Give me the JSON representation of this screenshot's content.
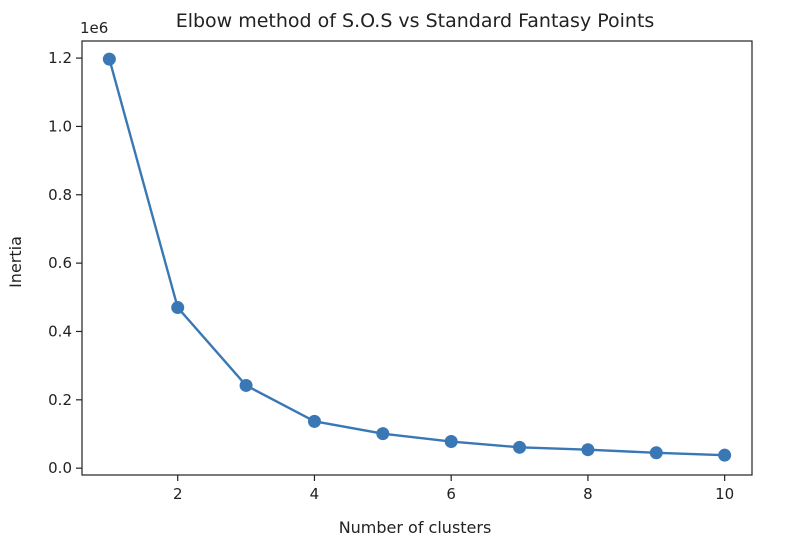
{
  "chart_data": {
    "type": "line",
    "title": "Elbow method of S.O.S vs Standard Fantasy Points",
    "xlabel": "Number of clusters",
    "ylabel": "Inertia",
    "y_offset_label": "1e6",
    "xlim": [
      0.6,
      10.4
    ],
    "ylim": [
      -0.02,
      1.25
    ],
    "x_ticks": [
      2,
      4,
      6,
      8,
      10
    ],
    "x_tick_labels": [
      "2",
      "4",
      "6",
      "8",
      "10"
    ],
    "y_ticks": [
      0.0,
      0.2,
      0.4,
      0.6,
      0.8,
      1.0,
      1.2
    ],
    "y_tick_labels": [
      "0.0",
      "0.2",
      "0.4",
      "0.6",
      "0.8",
      "1.0",
      "1.2"
    ],
    "grid": false,
    "legend": "none",
    "series": [
      {
        "color": "#3a78b5",
        "marker": "circle",
        "x": [
          1,
          2,
          3,
          4,
          5,
          6,
          7,
          8,
          9,
          10
        ],
        "y": [
          1.197,
          0.47,
          0.242,
          0.137,
          0.101,
          0.078,
          0.061,
          0.054,
          0.045,
          0.038
        ]
      }
    ]
  }
}
